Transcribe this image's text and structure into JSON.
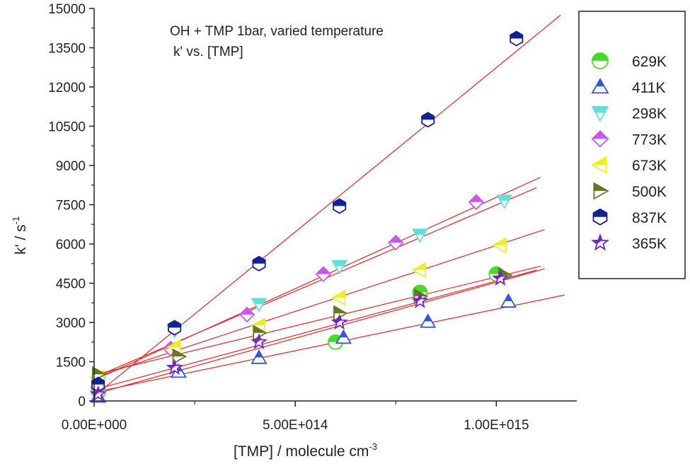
{
  "chart_data": {
    "type": "scatter",
    "title": "",
    "annotation_line1": "OH + TMP  1bar, varied temperature",
    "annotation_line2": "k' vs. [TMP]",
    "xlabel_main": "[TMP]    /    molecule cm",
    "xlabel_sup": "-3",
    "ylabel_main": "k'    /    s",
    "ylabel_sup": "-1",
    "xlim": [
      0,
      1200000000000000.0
    ],
    "ylim": [
      0,
      15000
    ],
    "x_ticks": [
      {
        "value": 0,
        "label": "0.00E+000"
      },
      {
        "value": 500000000000000.0,
        "label": "5.00E+014"
      },
      {
        "value": 1000000000000000.0,
        "label": "1.00E+015"
      }
    ],
    "y_ticks": [
      {
        "value": 0,
        "label": "0"
      },
      {
        "value": 1500,
        "label": "1500"
      },
      {
        "value": 3000,
        "label": "3000"
      },
      {
        "value": 4500,
        "label": "4500"
      },
      {
        "value": 6000,
        "label": "6000"
      },
      {
        "value": 7500,
        "label": "7500"
      },
      {
        "value": 9000,
        "label": "9000"
      },
      {
        "value": 10500,
        "label": "10500"
      },
      {
        "value": 12000,
        "label": "12000"
      },
      {
        "value": 13500,
        "label": "13500"
      },
      {
        "value": 15000,
        "label": "15000"
      }
    ],
    "grid": false,
    "legend_position": "right",
    "fit_line_color": "#ee2222",
    "series": [
      {
        "name": "629K",
        "marker": "circle",
        "color": "#44dd22",
        "points": [
          [
            11000000000000.0,
            380
          ],
          [
            600000000000000.0,
            2250
          ],
          [
            810000000000000.0,
            4150
          ],
          [
            1000000000000000.0,
            4850
          ]
        ],
        "fit": [
          [
            0,
            430
          ],
          [
            1100000000000000.0,
            5000
          ]
        ]
      },
      {
        "name": "411K",
        "marker": "triangle-up",
        "color": "#3355dd",
        "points": [
          [
            10000000000000.0,
            170
          ],
          [
            210000000000000.0,
            1120
          ],
          [
            410000000000000.0,
            1650
          ],
          [
            620000000000000.0,
            2420
          ],
          [
            830000000000000.0,
            3030
          ],
          [
            1030000000000000.0,
            3800
          ]
        ],
        "fit": [
          [
            0,
            330
          ],
          [
            1170000000000000.0,
            4050
          ]
        ]
      },
      {
        "name": "298K",
        "marker": "triangle-down",
        "color": "#66dddd",
        "points": [
          [
            10000000000000.0,
            700
          ],
          [
            200000000000000.0,
            2700
          ],
          [
            410000000000000.0,
            3700
          ],
          [
            610000000000000.0,
            5150
          ],
          [
            810000000000000.0,
            6350
          ],
          [
            1020000000000000.0,
            7650
          ]
        ],
        "fit": [
          [
            0,
            900
          ],
          [
            1100000000000000.0,
            8150
          ]
        ]
      },
      {
        "name": "773K",
        "marker": "diamond",
        "color": "#cc55ee",
        "points": [
          [
            10000000000000.0,
            520
          ],
          [
            190000000000000.0,
            2000
          ],
          [
            380000000000000.0,
            3300
          ],
          [
            570000000000000.0,
            4850
          ],
          [
            750000000000000.0,
            6050
          ],
          [
            950000000000000.0,
            7600
          ]
        ],
        "fit": [
          [
            0,
            800
          ],
          [
            1110000000000000.0,
            8550
          ]
        ]
      },
      {
        "name": "673K",
        "marker": "triangle-left",
        "color": "#eeee22",
        "points": [
          [
            10000000000000.0,
            900
          ],
          [
            200000000000000.0,
            2050
          ],
          [
            410000000000000.0,
            2880
          ],
          [
            610000000000000.0,
            3950
          ],
          [
            810000000000000.0,
            5000
          ],
          [
            1010000000000000.0,
            5950
          ]
        ],
        "fit": [
          [
            0,
            900
          ],
          [
            1120000000000000.0,
            6550
          ]
        ]
      },
      {
        "name": "500K",
        "marker": "triangle-right",
        "color": "#667722",
        "points": [
          [
            10000000000000.0,
            1020
          ],
          [
            210000000000000.0,
            1700
          ],
          [
            410000000000000.0,
            2600
          ],
          [
            610000000000000.0,
            3350
          ],
          [
            810000000000000.0,
            4000
          ],
          [
            1020000000000000.0,
            4800
          ]
        ],
        "fit": [
          [
            0,
            1000
          ],
          [
            1110000000000000.0,
            5150
          ]
        ]
      },
      {
        "name": "837K",
        "marker": "hexagon",
        "color": "#112299",
        "points": [
          [
            10000000000000.0,
            630
          ],
          [
            200000000000000.0,
            2800
          ],
          [
            410000000000000.0,
            5250
          ],
          [
            610000000000000.0,
            7450
          ],
          [
            830000000000000.0,
            10750
          ],
          [
            1050000000000000.0,
            13850
          ]
        ],
        "fit": [
          [
            0,
            180
          ],
          [
            1160000000000000.0,
            14750
          ]
        ]
      },
      {
        "name": "365K",
        "marker": "star",
        "color": "#7722cc",
        "points": [
          [
            10000000000000.0,
            260
          ],
          [
            200000000000000.0,
            1270
          ],
          [
            410000000000000.0,
            2250
          ],
          [
            610000000000000.0,
            3000
          ],
          [
            810000000000000.0,
            3820
          ],
          [
            1010000000000000.0,
            4680
          ]
        ],
        "fit": [
          [
            0,
            260
          ],
          [
            1120000000000000.0,
            5050
          ]
        ]
      }
    ]
  }
}
